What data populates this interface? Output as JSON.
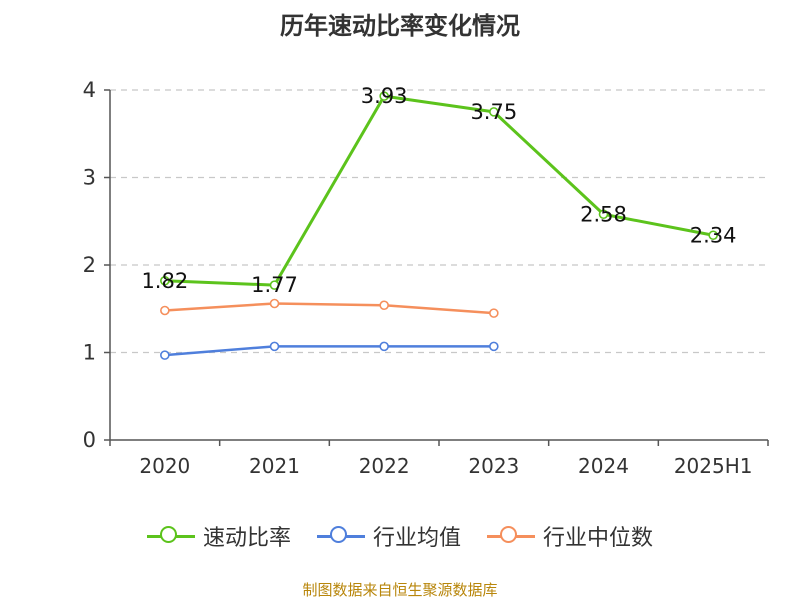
{
  "colors": {
    "speed_ratio": "#5cc31c",
    "industry_avg": "#4f7fdc",
    "industry_median": "#f58f5c",
    "axis": "#555555",
    "grid": "#c8c8c8",
    "source_text": "#b8860b"
  },
  "chart_data": {
    "type": "line",
    "title": "历年速动比率变化情况",
    "categories": [
      "2020",
      "2021",
      "2022",
      "2023",
      "2024",
      "2025H1"
    ],
    "ylim": [
      0,
      4
    ],
    "yticks": [
      "0",
      "1",
      "2",
      "3",
      "4"
    ],
    "grid": "horizontal dashed",
    "legend_position": "bottom",
    "series": [
      {
        "name": "速动比率",
        "values": [
          1.82,
          1.77,
          3.93,
          3.75,
          2.58,
          2.34
        ],
        "labels": [
          "1.82",
          "1.77",
          "3.93",
          "3.75",
          "2.58",
          "2.34"
        ]
      },
      {
        "name": "行业均值",
        "values": [
          0.97,
          1.07,
          1.07,
          1.07,
          null,
          null
        ]
      },
      {
        "name": "行业中位数",
        "values": [
          1.48,
          1.56,
          1.54,
          1.45,
          null,
          null
        ]
      }
    ]
  },
  "footer": {
    "source": "制图数据来自恒生聚源数据库"
  }
}
